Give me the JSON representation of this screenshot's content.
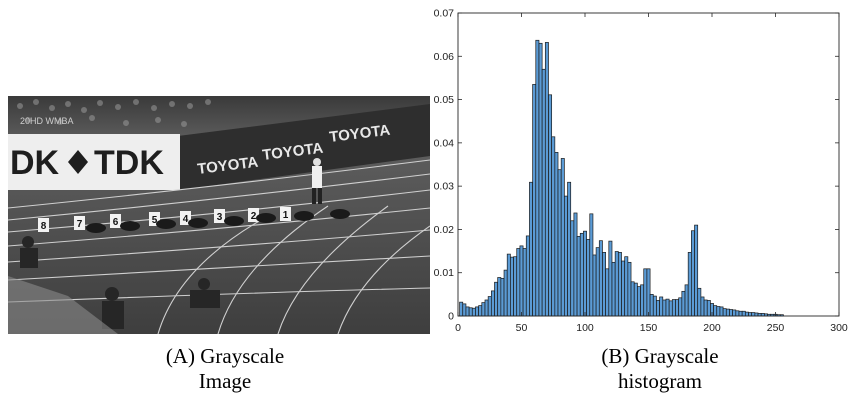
{
  "panel_a": {
    "tag": "(A)",
    "caption_line1": "Grayscale",
    "caption_line2": "Image",
    "photo": {
      "banner_left": "DK",
      "banner_right": "TDK",
      "ad_board_1": "TOYOTA",
      "ad_board_2": "TOYOTA",
      "ad_board_3": "TOYOTA",
      "lane_numbers": [
        "8",
        "7",
        "6",
        "5",
        "4",
        "3",
        "2",
        "1"
      ],
      "scoreboard": "20HD WMBA"
    }
  },
  "panel_b": {
    "tag": "(B)",
    "caption_line1": "Grayscale",
    "caption_line2": "histogram"
  },
  "chart_data": {
    "type": "bar",
    "title": "",
    "xlabel": "",
    "ylabel": "",
    "xlim": [
      0,
      300
    ],
    "ylim": [
      0,
      0.07
    ],
    "xticks": [
      0,
      50,
      100,
      150,
      200,
      250,
      300
    ],
    "yticks": [
      0,
      0.01,
      0.02,
      0.03,
      0.04,
      0.05,
      0.06,
      0.07
    ],
    "ytick_labels": [
      "0",
      "0.01",
      "0.02",
      "0.03",
      "0.04",
      "0.05",
      "0.06",
      "0.07"
    ],
    "grid": false,
    "bar_color": "#5b9bd5",
    "edge_color": "#1a1a1a",
    "bin_width": 2.5,
    "x": [
      2.5,
      5,
      7.5,
      10,
      12.5,
      15,
      17.5,
      20,
      22.5,
      25,
      27.5,
      30,
      32.5,
      35,
      37.5,
      40,
      42.5,
      45,
      47.5,
      50,
      52.5,
      55,
      57.5,
      60,
      62.5,
      65,
      67.5,
      70,
      72.5,
      75,
      77.5,
      80,
      82.5,
      85,
      87.5,
      90,
      92.5,
      95,
      97.5,
      100,
      102.5,
      105,
      107.5,
      110,
      112.5,
      115,
      117.5,
      120,
      122.5,
      125,
      127.5,
      130,
      132.5,
      135,
      137.5,
      140,
      142.5,
      145,
      147.5,
      150,
      152.5,
      155,
      157.5,
      160,
      162.5,
      165,
      167.5,
      170,
      172.5,
      175,
      177.5,
      180,
      182.5,
      185,
      187.5,
      190,
      192.5,
      195,
      197.5,
      200,
      202.5,
      205,
      207.5,
      210,
      212.5,
      215,
      217.5,
      220,
      222.5,
      225,
      227.5,
      230,
      232.5,
      235,
      237.5,
      240,
      242.5,
      245,
      247.5,
      250,
      252.5,
      255
    ],
    "values": [
      0.0032,
      0.0028,
      0.0021,
      0.0019,
      0.0018,
      0.0021,
      0.0024,
      0.0031,
      0.0037,
      0.0045,
      0.0058,
      0.0078,
      0.0089,
      0.0087,
      0.0106,
      0.0143,
      0.0136,
      0.0137,
      0.0156,
      0.0162,
      0.0156,
      0.0185,
      0.0309,
      0.0535,
      0.0637,
      0.063,
      0.057,
      0.0632,
      0.0511,
      0.0414,
      0.0378,
      0.0338,
      0.0364,
      0.0277,
      0.0309,
      0.022,
      0.0238,
      0.0184,
      0.0191,
      0.0196,
      0.0177,
      0.0236,
      0.0141,
      0.0158,
      0.0174,
      0.0147,
      0.0109,
      0.0173,
      0.0124,
      0.0149,
      0.0147,
      0.0127,
      0.0137,
      0.0124,
      0.0079,
      0.0076,
      0.0068,
      0.0072,
      0.0109,
      0.0109,
      0.005,
      0.0046,
      0.0036,
      0.0044,
      0.0037,
      0.0039,
      0.0035,
      0.0038,
      0.0038,
      0.0042,
      0.0057,
      0.0072,
      0.0147,
      0.0197,
      0.021,
      0.0064,
      0.0044,
      0.0037,
      0.0036,
      0.0029,
      0.0024,
      0.0022,
      0.0021,
      0.0017,
      0.0016,
      0.0015,
      0.0014,
      0.0012,
      0.0011,
      0.0011,
      0.0009,
      0.0008,
      0.0008,
      0.0007,
      0.0006,
      0.0006,
      0.0005,
      0.0004,
      0.0004,
      0.0004,
      0.0003,
      0.0003
    ]
  }
}
